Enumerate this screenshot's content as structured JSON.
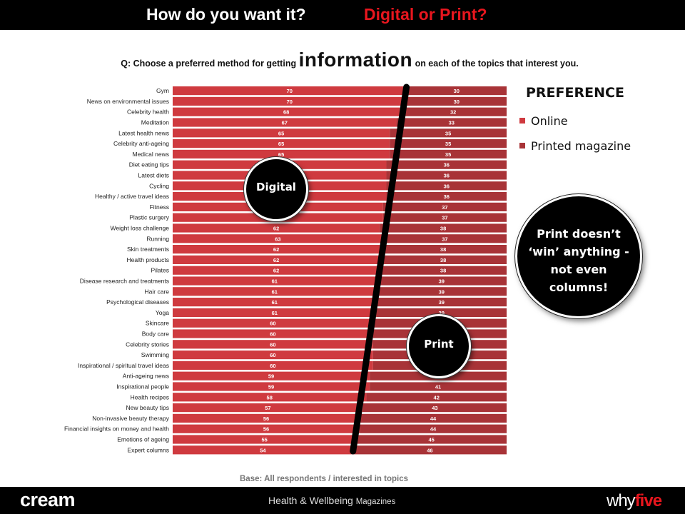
{
  "header": {
    "title_part1": "How do you want it?",
    "title_part2": "Digital or Print?"
  },
  "question": {
    "prefix": "Q: Choose a preferred method for getting",
    "emphasis": "information",
    "suffix": "on each of the topics that interest you."
  },
  "legend": {
    "title": "PREFERENCE",
    "items": [
      {
        "label": "Online",
        "color": "#cf3a3f"
      },
      {
        "label": "Printed magazine",
        "color": "#a83337"
      }
    ]
  },
  "bubbles": {
    "digital": "Digital",
    "print": "Print"
  },
  "callout": "Print doesn’t ‘win’ anything - not even columns!",
  "base_note": "Base: All respondents / interested in topics",
  "footer": {
    "brand": "cream",
    "magazine_main": "Health & Wellbeing",
    "magazine_small": "Magazines",
    "logo_part1": "why",
    "logo_part2": "five"
  },
  "colors": {
    "online": "#cf3a3f",
    "print": "#a83337",
    "accent": "#e8161e"
  },
  "chart_data": {
    "type": "bar",
    "orientation": "horizontal",
    "stacked": true,
    "categories": [
      "Gym",
      "News on environmental issues",
      "Celebrity health",
      "Meditation",
      "Latest health news",
      "Celebrity anti-ageing",
      "Medical news",
      "Diet eating tips",
      "Latest diets",
      "Cycling",
      "Healthy / active travel ideas",
      "Fitness",
      "Plastic surgery",
      "Weight loss challenge",
      "Running",
      "Skin treatments",
      "Health products",
      "Pilates",
      "Disease research and treatments",
      "Hair care",
      "Psychological diseases",
      "Yoga",
      "Skincare",
      "Body care",
      "Celebrity stories",
      "Swimming",
      "Inspirational / spiritual travel ideas",
      "Anti-ageing news",
      "Inspirational people",
      "Health recipes",
      "New beauty tips",
      "Non-invasive beauty therapy",
      "Financial insights on money and health",
      "Emotions of ageing",
      "Expert columns"
    ],
    "series": [
      {
        "name": "Online",
        "values": [
          70,
          70,
          68,
          67,
          65,
          65,
          65,
          64,
          64,
          64,
          64,
          63,
          63,
          62,
          63,
          62,
          62,
          62,
          61,
          61,
          61,
          61,
          60,
          60,
          60,
          60,
          60,
          59,
          59,
          58,
          57,
          56,
          56,
          55,
          54
        ]
      },
      {
        "name": "Printed magazine",
        "values": [
          30,
          30,
          32,
          33,
          35,
          35,
          35,
          36,
          36,
          36,
          36,
          37,
          37,
          38,
          37,
          38,
          38,
          38,
          39,
          39,
          39,
          39,
          40,
          40,
          40,
          40,
          40,
          41,
          41,
          42,
          43,
          44,
          44,
          45,
          46
        ]
      }
    ],
    "ylim": [
      0,
      100
    ]
  }
}
